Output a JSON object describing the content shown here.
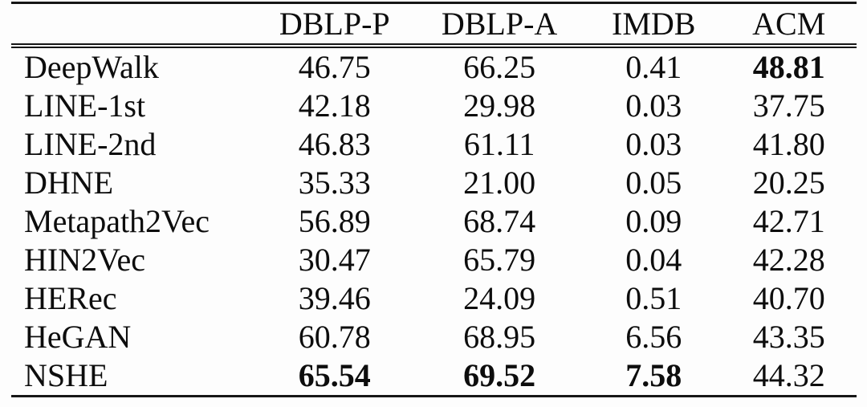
{
  "colors": {
    "background": "#fdfdfd",
    "text": "#0d0d0d",
    "rule": "#161616"
  },
  "chart_data": {
    "type": "table",
    "title": "",
    "row_header_label": "",
    "columns": [
      "DBLP-P",
      "DBLP-A",
      "IMDB",
      "ACM"
    ],
    "rows": [
      {
        "method": "DeepWalk",
        "values": [
          "46.75",
          "66.25",
          "0.41",
          "48.81"
        ],
        "bold": [
          false,
          false,
          false,
          true
        ]
      },
      {
        "method": "LINE-1st",
        "values": [
          "42.18",
          "29.98",
          "0.03",
          "37.75"
        ],
        "bold": [
          false,
          false,
          false,
          false
        ]
      },
      {
        "method": "LINE-2nd",
        "values": [
          "46.83",
          "61.11",
          "0.03",
          "41.80"
        ],
        "bold": [
          false,
          false,
          false,
          false
        ]
      },
      {
        "method": "DHNE",
        "values": [
          "35.33",
          "21.00",
          "0.05",
          "20.25"
        ],
        "bold": [
          false,
          false,
          false,
          false
        ]
      },
      {
        "method": "Metapath2Vec",
        "values": [
          "56.89",
          "68.74",
          "0.09",
          "42.71"
        ],
        "bold": [
          false,
          false,
          false,
          false
        ]
      },
      {
        "method": "HIN2Vec",
        "values": [
          "30.47",
          "65.79",
          "0.04",
          "42.28"
        ],
        "bold": [
          false,
          false,
          false,
          false
        ]
      },
      {
        "method": "HERec",
        "values": [
          "39.46",
          "24.09",
          "0.51",
          "40.70"
        ],
        "bold": [
          false,
          false,
          false,
          false
        ]
      },
      {
        "method": "HeGAN",
        "values": [
          "60.78",
          "68.95",
          "6.56",
          "43.35"
        ],
        "bold": [
          false,
          false,
          false,
          false
        ]
      },
      {
        "method": "NSHE",
        "values": [
          "65.54",
          "69.52",
          "7.58",
          "44.32"
        ],
        "bold": [
          true,
          true,
          true,
          false
        ]
      }
    ],
    "column_widths_pct": [
      29,
      18.5,
      20.5,
      16,
      16
    ]
  }
}
